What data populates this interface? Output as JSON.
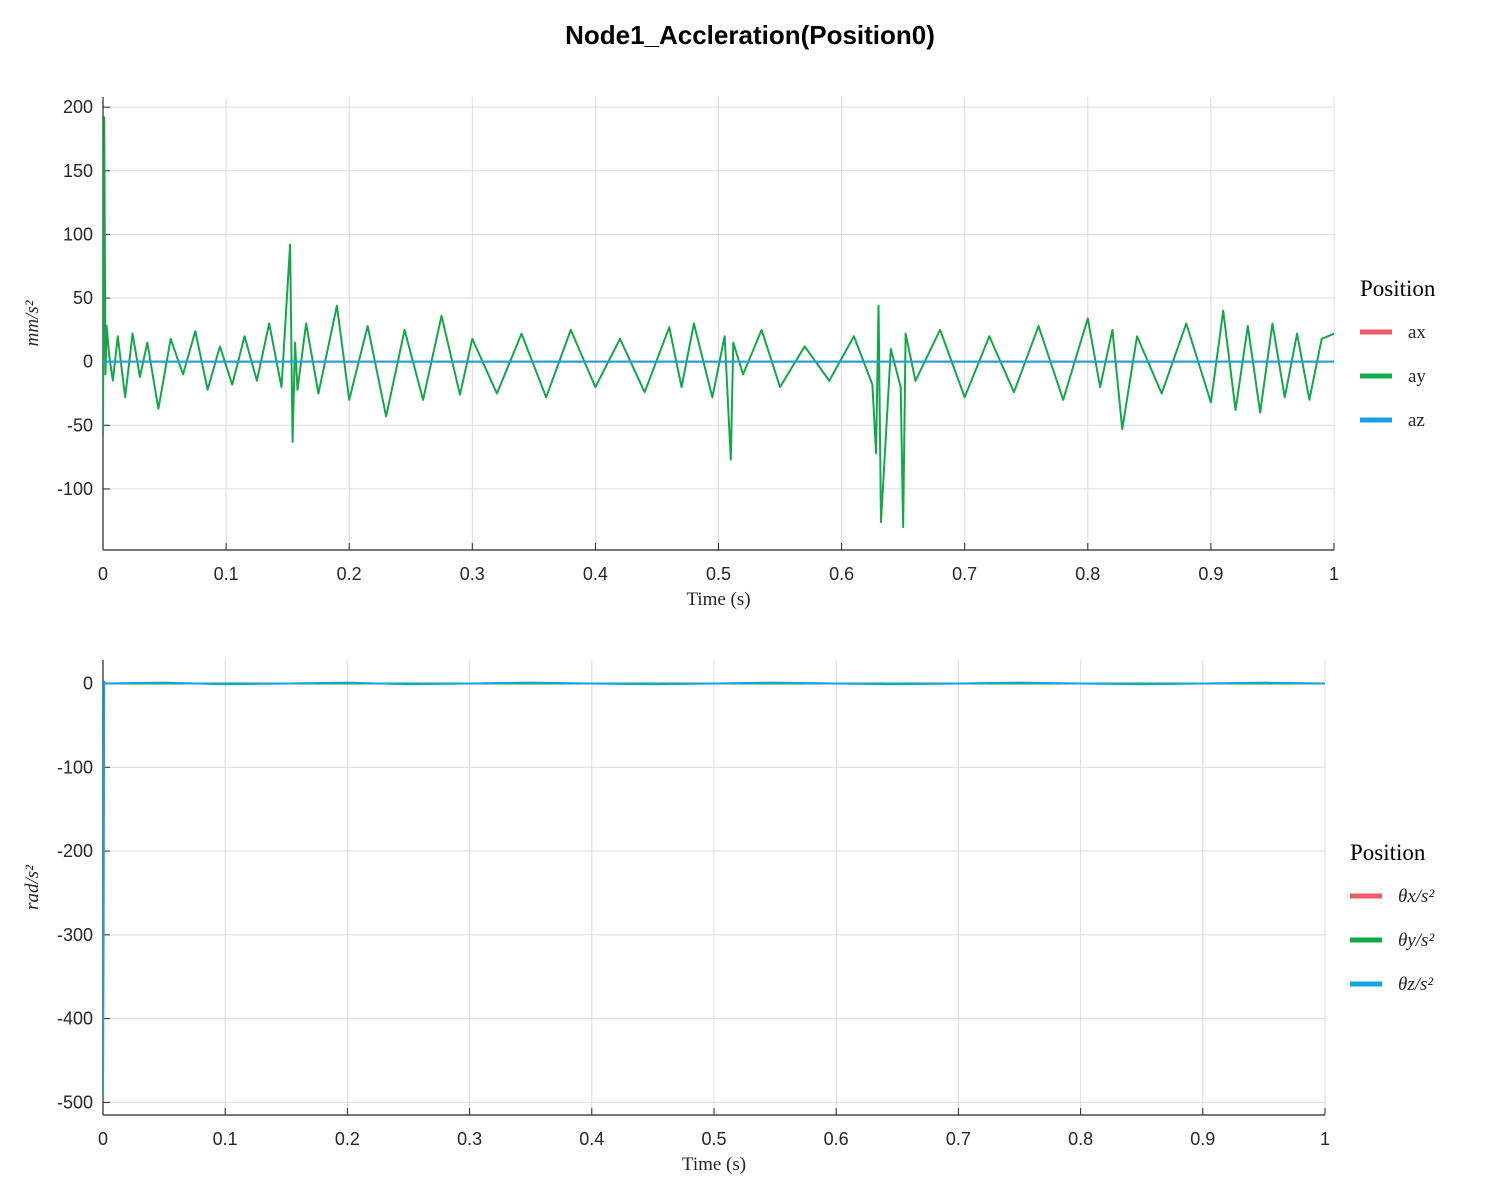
{
  "figure": {
    "title": "Node1_Accleration(Position0)"
  },
  "colors": {
    "ax": "#EE5A67",
    "ay": "#12A84A",
    "az": "#17A2E6",
    "grid": "#DCDCDC",
    "axis": "#262626"
  },
  "chart_data": [
    {
      "type": "line",
      "title": "",
      "xlabel": "Time (s)",
      "ylabel": "mm/s²",
      "xlim": [
        0,
        1
      ],
      "ylim": [
        -148,
        208
      ],
      "xticks": [
        0,
        0.1,
        0.2,
        0.3,
        0.4,
        0.5,
        0.6,
        0.7,
        0.8,
        0.9,
        1
      ],
      "xtick_labels": [
        "0",
        "0.1",
        "0.2",
        "0.3",
        "0.4",
        "0.5",
        "0.6",
        "0.7",
        "0.8",
        "0.9",
        "1"
      ],
      "yticks": [
        200,
        150,
        100,
        50,
        0,
        -50,
        -100
      ],
      "ytick_labels": [
        "200",
        "150",
        "100",
        "50",
        "0",
        "-50",
        "-100"
      ],
      "grid": true,
      "legend": {
        "title": "Position",
        "placement": "right",
        "entries": [
          "ax",
          "ay",
          "az"
        ]
      },
      "series": [
        {
          "name": "ax",
          "x": [
            0,
            1
          ],
          "y": [
            0,
            0
          ]
        },
        {
          "name": "ay",
          "x": [
            0,
            0.001,
            0.002,
            0.003,
            0.005,
            0.008,
            0.012,
            0.018,
            0.024,
            0.03,
            0.036,
            0.045,
            0.055,
            0.065,
            0.075,
            0.085,
            0.095,
            0.105,
            0.115,
            0.125,
            0.135,
            0.145,
            0.152,
            0.154,
            0.156,
            0.158,
            0.165,
            0.175,
            0.19,
            0.2,
            0.215,
            0.23,
            0.245,
            0.26,
            0.275,
            0.29,
            0.3,
            0.32,
            0.34,
            0.36,
            0.38,
            0.4,
            0.42,
            0.44,
            0.46,
            0.47,
            0.48,
            0.495,
            0.505,
            0.51,
            0.512,
            0.52,
            0.535,
            0.55,
            0.57,
            0.59,
            0.61,
            0.625,
            0.628,
            0.63,
            0.632,
            0.64,
            0.648,
            0.65,
            0.652,
            0.66,
            0.68,
            0.7,
            0.72,
            0.74,
            0.76,
            0.78,
            0.8,
            0.81,
            0.82,
            0.828,
            0.84,
            0.86,
            0.88,
            0.9,
            0.91,
            0.92,
            0.93,
            0.94,
            0.95,
            0.96,
            0.97,
            0.98,
            0.99,
            1.0
          ],
          "y": [
            -58,
            192,
            -10,
            28,
            5,
            -15,
            20,
            -28,
            22,
            -12,
            15,
            -37,
            18,
            -10,
            24,
            -22,
            12,
            -18,
            20,
            -15,
            30,
            -20,
            92,
            -63,
            15,
            -22,
            30,
            -25,
            44,
            -30,
            28,
            -43,
            25,
            -30,
            36,
            -26,
            18,
            -25,
            22,
            -28,
            25,
            -20,
            18,
            -24,
            27,
            -20,
            30,
            -28,
            20,
            -77,
            15,
            -10,
            25,
            -20,
            12,
            -15,
            20,
            -18,
            -72,
            44,
            -126,
            10,
            -20,
            -130,
            22,
            -15,
            25,
            -28,
            20,
            -24,
            28,
            -30,
            34,
            -20,
            25,
            -53,
            20,
            -25,
            30,
            -32,
            40,
            -38,
            28,
            -40,
            30,
            -28,
            22,
            -30,
            18,
            22
          ]
        },
        {
          "name": "az",
          "x": [
            0,
            1
          ],
          "y": [
            0,
            0
          ]
        }
      ]
    },
    {
      "type": "line",
      "title": "",
      "xlabel": "Time (s)",
      "ylabel": "rad/s²",
      "xlim": [
        0,
        1
      ],
      "ylim": [
        -515,
        28
      ],
      "xticks": [
        0,
        0.1,
        0.2,
        0.3,
        0.4,
        0.5,
        0.6,
        0.7,
        0.8,
        0.9,
        1
      ],
      "xtick_labels": [
        "0",
        "0.1",
        "0.2",
        "0.3",
        "0.4",
        "0.5",
        "0.6",
        "0.7",
        "0.8",
        "0.9",
        "1"
      ],
      "yticks": [
        0,
        -100,
        -200,
        -300,
        -400,
        -500
      ],
      "ytick_labels": [
        "0",
        "-100",
        "-200",
        "-300",
        "-400",
        "-500"
      ],
      "grid": true,
      "legend": {
        "title": "Position",
        "placement": "right",
        "entries": [
          "θx/s²",
          "θy/s²",
          "θz/s²"
        ]
      },
      "series": [
        {
          "name": "θx/s²",
          "x": [
            0,
            1
          ],
          "y": [
            0,
            0
          ]
        },
        {
          "name": "θy/s²",
          "x": [
            0,
            1
          ],
          "y": [
            0,
            0
          ]
        },
        {
          "name": "θz/s²",
          "x": [
            0,
            0.0005,
            0.001,
            0.002,
            0.05,
            0.1,
            0.15,
            0.2,
            0.25,
            0.3,
            0.35,
            0.4,
            0.45,
            0.5,
            0.55,
            0.6,
            0.65,
            0.7,
            0.75,
            0.8,
            0.85,
            0.9,
            0.95,
            1.0
          ],
          "y": [
            -495,
            -300,
            2,
            0,
            1,
            -1,
            0,
            1,
            -1,
            0,
            1,
            0,
            -1,
            0,
            1,
            0,
            -1,
            0,
            1,
            0,
            -1,
            0,
            1,
            0
          ]
        }
      ]
    }
  ]
}
